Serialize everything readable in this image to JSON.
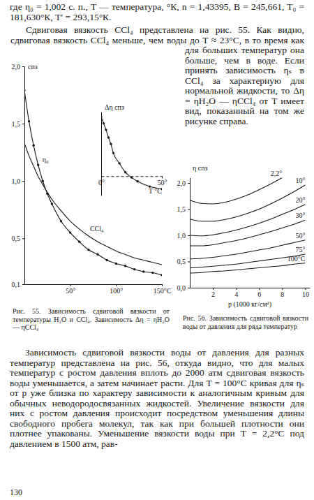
{
  "text": {
    "intro": "где η₀ = 1,002 с. п., T — температура, °К, n = 1,43395, B = 245,661, T₀ = 181,630°К, T′ = 293,15°К.",
    "paragraph_1": "Сдвиговая вязкость CCl₄ представлена на рис. 55. Как видно, сдвиговая вязкость CCl₄ меньше, чем воды до T ≈ 23°C, в то время как для больших температур она больше, чем в воде. Если принять зависимость ηₛ в CCl₄ за характерную для нормальной жидкости, то Δη = ηH₂O — ηCCl₄ от T имеет вид, показанный на том же рисунке справа.",
    "paragraph_2": "Зависимость сдвиговой вязкости воды от давления для разных температур представлена на рис. 56, откуда видно, что для малых температур с ростом давления вплоть до 2000 атм сдвиговая вязкость воды уменьшается, а затем начинает расти. Для T = 100°C кривая для ηₛ от p уже близка по характеру зависимости к аналогичным кривым для обычных неводородосвязанных жидкостей. Увеличение вязкости для них с ростом давления происходит посредством уменьшения длины свободного пробега молекул, так как при большей плотности они плотнее упакованы. Уменьшение вязкости воды при T = 2,2°C под давлением в 1500 атм, рав-",
    "page_number": "130"
  },
  "chart_data": [
    {
      "type": "line",
      "title": "Рис. 55. Зависимость сдвиговой вязкости от температуры H₂O и CCl₄. Зависимость Δη = ηH₂O — ηCCl₄",
      "y_label": "спз",
      "xlim": [
        0,
        150
      ],
      "xticks": [
        {
          "value": 50,
          "label": "50°"
        },
        {
          "value": 100,
          "label": "100°"
        },
        {
          "value": 150,
          "label": "150°C"
        }
      ],
      "ylim": [
        0.1,
        2.0
      ],
      "yticks": [
        {
          "value": 0.1,
          "label": "0,1"
        },
        {
          "value": 0.5,
          "label": "0,5"
        },
        {
          "value": 1.0,
          "label": "1,0"
        },
        {
          "value": 1.5,
          "label": "1,5"
        },
        {
          "value": 2.0,
          "label": "2,0"
        }
      ],
      "x": [
        0,
        5,
        10,
        15,
        20,
        25,
        30,
        40,
        50,
        60,
        70,
        80,
        90,
        100,
        110,
        120,
        130,
        140,
        150
      ],
      "series": [
        {
          "name": "η₀",
          "color": "#151515",
          "marker": "circle",
          "line_style": "solid",
          "values": [
            1.79,
            1.52,
            1.31,
            1.14,
            1.0,
            0.89,
            0.8,
            0.65,
            0.55,
            0.47,
            0.4,
            0.36,
            0.31,
            0.28,
            0.26,
            0.23,
            0.21,
            0.2,
            0.18
          ]
        },
        {
          "name": "CCl₄",
          "color": "#151515",
          "marker": "none",
          "line_style": "solid",
          "values": [
            1.33,
            1.22,
            1.13,
            1.04,
            0.97,
            0.9,
            0.84,
            0.74,
            0.65,
            0.58,
            0.52,
            0.47,
            0.43,
            0.39,
            0.36,
            0.33,
            0.31,
            0.29,
            0.27
          ]
        }
      ]
    },
    {
      "type": "line",
      "y_label": "Δη спз",
      "x_label": "T °C",
      "xlim": [
        0,
        50
      ],
      "xticks": [
        {
          "value": 0,
          "label": "0°"
        },
        {
          "value": 50,
          "label": "50°"
        }
      ],
      "ylim": [
        -0.15,
        0.5
      ],
      "yticks": [],
      "x": [
        0,
        2,
        4,
        6,
        8,
        10,
        15,
        20,
        25,
        30,
        40,
        50
      ],
      "series": [
        {
          "color": "#151515",
          "marker": "circle",
          "line_style": "solid",
          "values": [
            0.46,
            0.41,
            0.36,
            0.3,
            0.25,
            0.18,
            0.1,
            0.03,
            -0.01,
            -0.04,
            -0.08,
            -0.1
          ]
        }
      ]
    },
    {
      "type": "line",
      "title": "Рис. 56. Зависимость сдвиговой вязкости воды от давления для ряда температур",
      "x_label": "p (1000 кг/см²)",
      "y_label": "η спз",
      "xlim": [
        0,
        10.4
      ],
      "xticks": [
        2,
        4,
        6,
        8,
        10
      ],
      "ylim": [
        0,
        2.1
      ],
      "yticks": [
        {
          "value": 0,
          "label": "0,0"
        },
        {
          "value": 0.5,
          "label": "0,5"
        },
        {
          "value": 1.0,
          "label": "1,0"
        },
        {
          "value": 1.5,
          "label": "1,5"
        },
        {
          "value": 2.0,
          "label": "2,0"
        }
      ],
      "x": [
        0,
        1,
        2,
        3,
        4,
        5,
        6,
        7,
        8,
        9,
        10
      ],
      "series": [
        {
          "name": "2,2°",
          "color": "#151515",
          "marker": "none",
          "line_style": "solid",
          "values": [
            1.67,
            1.61,
            1.6,
            1.63,
            1.69,
            1.77,
            1.87,
            1.98,
            2.1,
            null,
            null
          ]
        },
        {
          "name": "10°",
          "color": "#151515",
          "marker": "none",
          "line_style": "solid",
          "values": [
            1.31,
            1.27,
            1.27,
            1.3,
            1.35,
            1.42,
            1.5,
            1.6,
            1.71,
            1.83,
            1.96
          ]
        },
        {
          "name": "20°",
          "color": "#151515",
          "marker": "none",
          "line_style": "solid",
          "values": [
            1.0,
            0.99,
            1.01,
            1.05,
            1.1,
            1.16,
            1.23,
            1.31,
            1.4,
            1.49,
            1.59
          ]
        },
        {
          "name": "30°",
          "color": "#151515",
          "marker": "none",
          "line_style": "solid",
          "values": [
            0.8,
            0.8,
            0.82,
            0.86,
            0.9,
            0.95,
            1.01,
            1.07,
            1.14,
            1.21,
            1.29
          ]
        },
        {
          "name": "50°",
          "color": "#151515",
          "marker": "none",
          "line_style": "solid",
          "values": [
            0.55,
            0.56,
            0.58,
            0.61,
            0.64,
            0.68,
            0.72,
            0.76,
            0.81,
            0.86,
            0.91
          ]
        },
        {
          "name": "75°",
          "color": "#151515",
          "marker": "none",
          "line_style": "solid",
          "values": [
            0.38,
            0.39,
            0.41,
            0.43,
            0.45,
            0.48,
            0.51,
            0.54,
            0.57,
            0.6,
            0.64
          ]
        },
        {
          "name": "100°C",
          "color": "#151515",
          "marker": "none",
          "line_style": "solid",
          "values": [
            0.28,
            0.29,
            0.31,
            0.32,
            0.34,
            0.36,
            0.38,
            0.4,
            0.42,
            0.45,
            0.47
          ]
        }
      ]
    }
  ]
}
